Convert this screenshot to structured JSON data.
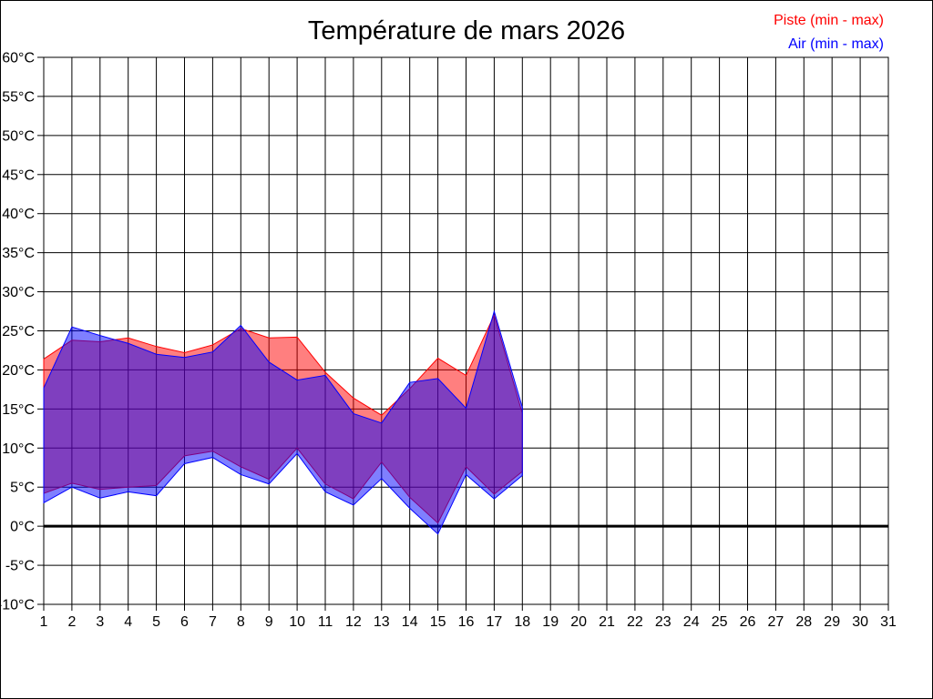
{
  "chart_data": {
    "type": "area",
    "title": "Température de mars 2026",
    "legend_position": "top-right",
    "grid": true,
    "zero_line_bold": true,
    "ylim": [
      -10,
      60
    ],
    "y_tick_step": 5,
    "y_unit": "°C",
    "y_tick_labels": [
      "60°C",
      "55°C",
      "50°C",
      "45°C",
      "40°C",
      "35°C",
      "30°C",
      "25°C",
      "20°C",
      "15°C",
      "10°C",
      "5°C",
      "0°C",
      "-5°C",
      "-10°C"
    ],
    "x_tick_labels": [
      "1",
      "2",
      "3",
      "4",
      "5",
      "6",
      "7",
      "8",
      "9",
      "10",
      "11",
      "12",
      "13",
      "14",
      "15",
      "16",
      "17",
      "18",
      "19",
      "20",
      "21",
      "22",
      "23",
      "24",
      "25",
      "26",
      "27",
      "28",
      "29",
      "30",
      "31"
    ],
    "xlim": [
      1,
      31
    ],
    "days_with_data": [
      1,
      2,
      3,
      4,
      5,
      6,
      7,
      8,
      9,
      10,
      11,
      12,
      13,
      14,
      15,
      16,
      17,
      18
    ],
    "series": [
      {
        "name": "Piste (min - max)",
        "color": "#ff0000",
        "fill_opacity": 0.5,
        "min": [
          4.2,
          5.5,
          4.7,
          5.0,
          5.2,
          9.0,
          9.6,
          7.6,
          6.0,
          10.0,
          5.4,
          3.5,
          8.2,
          3.7,
          0.4,
          7.6,
          4.1,
          7.0
        ],
        "max": [
          21.4,
          23.8,
          23.6,
          24.1,
          23.0,
          22.2,
          23.2,
          25.3,
          24.1,
          24.2,
          19.7,
          16.4,
          14.2,
          17.6,
          21.5,
          19.3,
          27.0,
          14.4
        ]
      },
      {
        "name": "Air (min - max)",
        "color": "#0000ff",
        "fill_opacity": 0.5,
        "min": [
          3.0,
          5.0,
          3.6,
          4.4,
          3.9,
          8.0,
          8.8,
          6.6,
          5.4,
          9.3,
          4.4,
          2.7,
          6.1,
          2.3,
          -1.0,
          6.6,
          3.5,
          6.5
        ],
        "max": [
          17.7,
          25.5,
          24.4,
          23.4,
          22.0,
          21.6,
          22.3,
          25.7,
          21.0,
          18.7,
          19.3,
          14.4,
          13.2,
          18.4,
          18.9,
          15.1,
          27.5,
          15.2
        ]
      }
    ],
    "axis_color": "#000000",
    "grid_color": "#000000"
  }
}
